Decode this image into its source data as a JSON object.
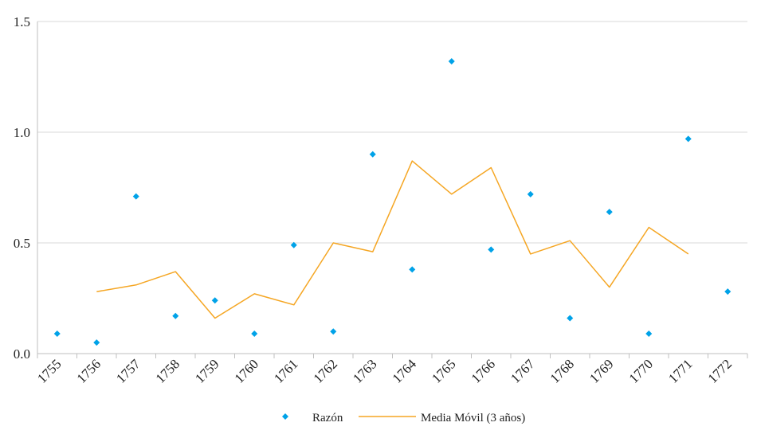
{
  "chart_data": {
    "type": "scatter+line",
    "title": "",
    "xlabel": "",
    "ylabel": "",
    "ylim": [
      0,
      1.5
    ],
    "yticks": [
      "0.0",
      "0.5",
      "1.0",
      "1.5"
    ],
    "grid": "horizontal",
    "legend_position": "bottom",
    "categories": [
      "1755",
      "1756",
      "1757",
      "1758",
      "1759",
      "1760",
      "1761",
      "1762",
      "1763",
      "1764",
      "1765",
      "1766",
      "1767",
      "1768",
      "1769",
      "1770",
      "1771",
      "1772"
    ],
    "series": [
      {
        "name": "Razón",
        "kind": "scatter",
        "marker": "diamond",
        "color": "#00A2E8",
        "values": [
          0.09,
          0.05,
          0.71,
          0.17,
          0.24,
          0.09,
          0.49,
          0.1,
          0.9,
          0.38,
          1.32,
          0.47,
          0.72,
          0.16,
          0.64,
          0.09,
          0.97,
          0.28
        ]
      },
      {
        "name": "Media Móvil (3 años)",
        "kind": "line",
        "color": "#F5A623",
        "values": [
          null,
          0.28,
          0.31,
          0.37,
          0.16,
          0.27,
          0.22,
          0.5,
          0.46,
          0.87,
          0.72,
          0.84,
          0.45,
          0.51,
          0.3,
          0.57,
          0.45,
          null
        ]
      }
    ]
  }
}
